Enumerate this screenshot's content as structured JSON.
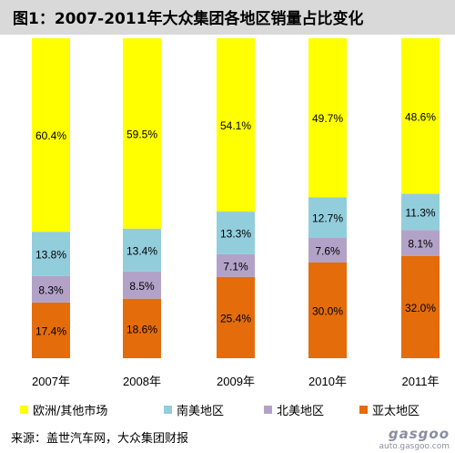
{
  "title": "图1：2007-2011年大众集团各地区销量占比变化",
  "colors": {
    "europe": "#ffff00",
    "south_america": "#92cddc",
    "north_america": "#b3a2c7",
    "asia_pacific": "#e46c0a"
  },
  "legend": {
    "europe": "欧洲/其他市场",
    "south_america": "南美地区",
    "north_america": "北美地区",
    "asia_pacific": "亚太地区"
  },
  "source": "来源：盖世汽车网，大众集团财报",
  "watermark": {
    "logo": "gasgoo",
    "url": "auto.gasgoo.com"
  },
  "chart_data": {
    "type": "bar",
    "stacked": true,
    "percent": true,
    "categories": [
      "2007年",
      "2008年",
      "2009年",
      "2010年",
      "2011年"
    ],
    "ylim": [
      0,
      100
    ],
    "grid": false,
    "legend_position": "bottom",
    "series": [
      {
        "name": "亚太地区",
        "color": "#e46c0a",
        "values": [
          17.4,
          18.6,
          25.4,
          30.0,
          32.0
        ],
        "labels": [
          "17.4%",
          "18.6%",
          "25.4%",
          "30.0%",
          "32.0%"
        ]
      },
      {
        "name": "北美地区",
        "color": "#b3a2c7",
        "values": [
          8.3,
          8.5,
          7.1,
          7.6,
          8.1
        ],
        "labels": [
          "8.3%",
          "8.5%",
          "7.1%",
          "7.6%",
          "8.1%"
        ]
      },
      {
        "name": "南美地区",
        "color": "#92cddc",
        "values": [
          13.8,
          13.4,
          13.3,
          12.7,
          11.3
        ],
        "labels": [
          "13.8%",
          "13.4%",
          "13.3%",
          "12.7%",
          "11.3%"
        ]
      },
      {
        "name": "欧洲/其他市场",
        "color": "#ffff00",
        "values": [
          60.4,
          59.5,
          54.1,
          49.7,
          48.6
        ],
        "labels": [
          "60.4%",
          "59.5%",
          "54.1%",
          "49.7%",
          "48.6%"
        ]
      }
    ]
  }
}
